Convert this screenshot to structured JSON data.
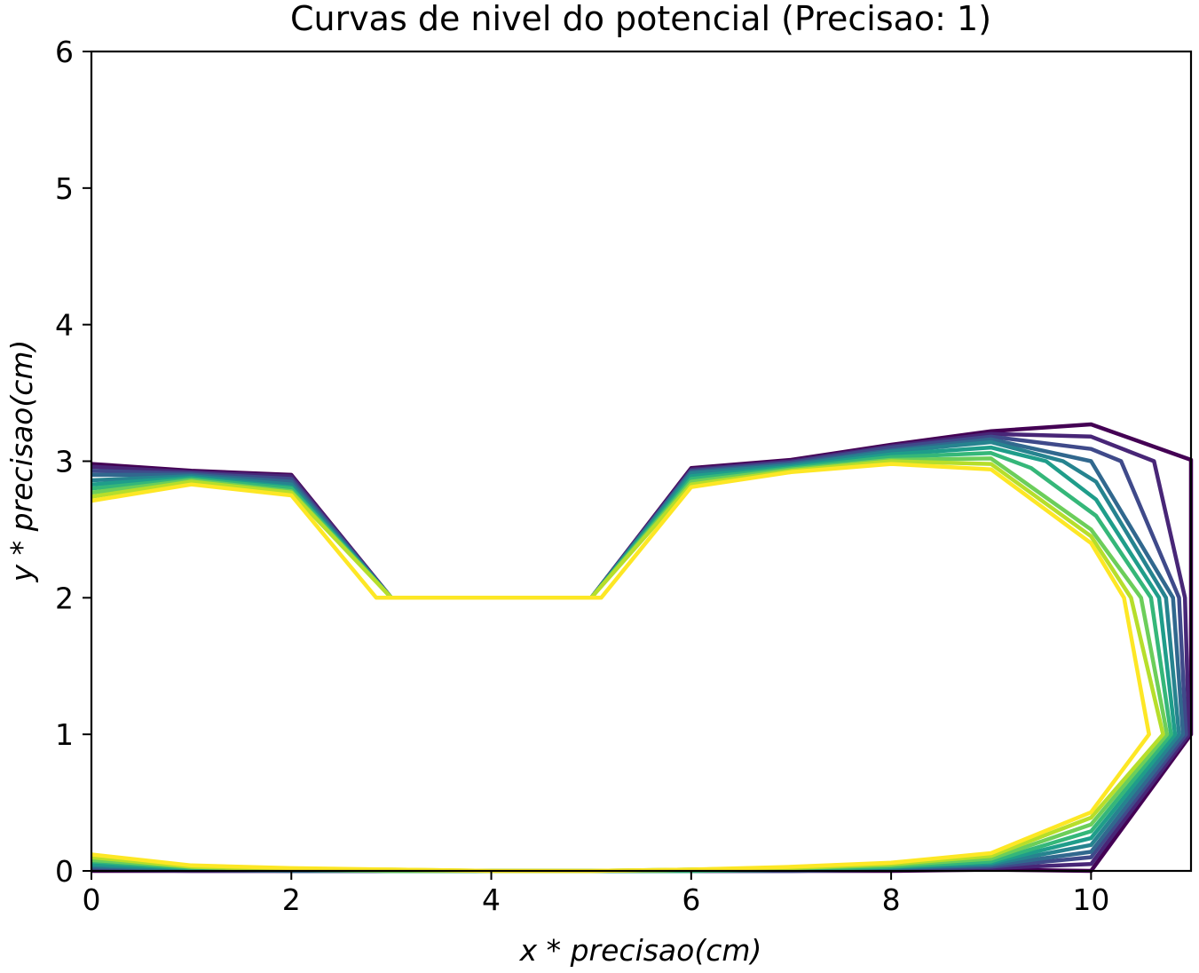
{
  "chart_data": {
    "type": "line",
    "title": "Curvas de nivel do potencial (Precisao: 1)",
    "xlabel": "x * precisao(cm)",
    "ylabel": "y * precisao(cm)",
    "xlim": [
      0,
      11
    ],
    "ylim": [
      0,
      6
    ],
    "x_ticks": [
      0,
      2,
      4,
      6,
      8,
      10
    ],
    "y_ticks": [
      0,
      1,
      2,
      3,
      4,
      5,
      6
    ],
    "grid": false,
    "colormap": [
      "#440154",
      "#482677",
      "#3f4a8a",
      "#31688e",
      "#26838f",
      "#1f9d8a",
      "#35b779",
      "#6cce5a",
      "#b6de2b",
      "#fde725"
    ],
    "series": [
      {
        "color": "#440154",
        "x": [
          0,
          1,
          2,
          3,
          4,
          5,
          6,
          7,
          8,
          9,
          10,
          11,
          11,
          11,
          10,
          9,
          8,
          7,
          6,
          5,
          4,
          3,
          2,
          1,
          0
        ],
        "y": [
          2.98,
          2.93,
          2.9,
          2.0,
          2.0,
          2.0,
          2.95,
          3.01,
          3.12,
          3.22,
          3.27,
          3.01,
          2.0,
          1.0,
          0.0,
          0.01,
          0.0,
          0.0,
          0.0,
          0.0,
          0.0,
          0.0,
          0.0,
          0.0,
          0.0
        ]
      },
      {
        "color": "#482677",
        "x": [
          0,
          1,
          2,
          3,
          4,
          5,
          6,
          7,
          8,
          9,
          10,
          10.63,
          10.94,
          10.98,
          10.0,
          9,
          8,
          7,
          6,
          5,
          4,
          3,
          2,
          1,
          0
        ],
        "y": [
          2.96,
          2.92,
          2.89,
          2.0,
          2.0,
          2.0,
          2.94,
          3.0,
          3.11,
          3.2,
          3.18,
          3.0,
          2.0,
          1.0,
          0.05,
          0.02,
          0.01,
          0.0,
          0.0,
          0.0,
          0.0,
          0.0,
          0.0,
          0.0,
          0.01
        ]
      },
      {
        "color": "#3f4a8a",
        "x": [
          0,
          1,
          2,
          3,
          4,
          5,
          6,
          7,
          8,
          9,
          10,
          10.3,
          10.88,
          10.95,
          10.0,
          9,
          8,
          7,
          6,
          5,
          4,
          3,
          2,
          1,
          0
        ],
        "y": [
          2.93,
          2.91,
          2.87,
          2.0,
          2.0,
          2.0,
          2.93,
          2.99,
          3.1,
          3.18,
          3.09,
          3.0,
          2.0,
          1.0,
          0.1,
          0.03,
          0.01,
          0.0,
          0.0,
          0.0,
          0.0,
          0.0,
          0.0,
          0.01,
          0.02
        ]
      },
      {
        "color": "#31688e",
        "x": [
          0,
          1,
          2,
          3,
          4,
          5,
          6,
          7,
          8,
          9,
          10,
          10.82,
          10.92,
          10.0,
          9,
          8,
          7,
          6,
          5,
          4,
          3,
          2,
          1,
          0
        ],
        "y": [
          2.9,
          2.9,
          2.85,
          2.0,
          2.0,
          2.0,
          2.92,
          2.98,
          3.08,
          3.16,
          3.0,
          2.0,
          1.0,
          0.14,
          0.04,
          0.02,
          0.01,
          0.0,
          0.0,
          0.0,
          0.0,
          0.0,
          0.01,
          0.03
        ]
      },
      {
        "color": "#26838f",
        "x": [
          0,
          1,
          2,
          3,
          4,
          5,
          6,
          7,
          8,
          9,
          9.72,
          10.05,
          10.75,
          10.88,
          10.0,
          9,
          8,
          7,
          6,
          5,
          4,
          3,
          2,
          1,
          0
        ],
        "y": [
          2.86,
          2.89,
          2.83,
          2.0,
          2.0,
          2.0,
          2.91,
          2.97,
          3.07,
          3.14,
          3.0,
          2.85,
          2.0,
          1.0,
          0.19,
          0.05,
          0.02,
          0.01,
          0.0,
          0.0,
          0.0,
          0.0,
          0.01,
          0.01,
          0.04
        ]
      },
      {
        "color": "#1f9d8a",
        "x": [
          0,
          1,
          2,
          3,
          4,
          5,
          6,
          7,
          8,
          9,
          9.55,
          10.05,
          10.68,
          10.84,
          10.0,
          9,
          8,
          7,
          6,
          5,
          4,
          3,
          2,
          1,
          0
        ],
        "y": [
          2.83,
          2.88,
          2.81,
          2.0,
          2.0,
          2.0,
          2.89,
          2.96,
          3.05,
          3.1,
          3.0,
          2.72,
          2.0,
          1.0,
          0.24,
          0.06,
          0.03,
          0.01,
          0.0,
          0.0,
          0.0,
          0.0,
          0.01,
          0.02,
          0.05
        ]
      },
      {
        "color": "#35b779",
        "x": [
          0,
          1,
          2,
          3,
          4,
          5,
          6,
          7,
          8,
          9,
          9.4,
          10.05,
          10.6,
          10.8,
          10.0,
          9,
          8,
          7,
          6,
          5,
          4,
          3,
          2,
          1,
          0
        ],
        "y": [
          2.8,
          2.87,
          2.8,
          2.0,
          2.0,
          2.0,
          2.87,
          2.95,
          3.03,
          3.06,
          2.95,
          2.6,
          2.0,
          1.0,
          0.29,
          0.07,
          0.03,
          0.01,
          0.0,
          0.0,
          0.0,
          0.0,
          0.01,
          0.02,
          0.07
        ]
      },
      {
        "color": "#6cce5a",
        "x": [
          0,
          1,
          2,
          3,
          4,
          5,
          6,
          7,
          8,
          9,
          10.0,
          10.5,
          10.76,
          10.0,
          9,
          8,
          7,
          6,
          5,
          4,
          3,
          2,
          1,
          0
        ],
        "y": [
          2.77,
          2.86,
          2.78,
          2.0,
          2.0,
          2.0,
          2.85,
          2.94,
          3.01,
          3.02,
          2.5,
          2.0,
          1.0,
          0.34,
          0.09,
          0.04,
          0.02,
          0.01,
          0.0,
          0.0,
          0.0,
          0.01,
          0.03,
          0.08
        ]
      },
      {
        "color": "#b6de2b",
        "x": [
          0,
          1,
          2,
          3,
          4,
          5,
          6,
          7,
          8,
          9,
          10.0,
          10.4,
          10.72,
          10.0,
          9,
          8,
          7,
          6,
          5,
          4,
          3,
          2,
          1,
          0
        ],
        "y": [
          2.74,
          2.85,
          2.77,
          2.0,
          2.0,
          2.0,
          2.83,
          2.93,
          3.0,
          2.98,
          2.45,
          2.0,
          1.0,
          0.39,
          0.11,
          0.05,
          0.02,
          0.01,
          0.0,
          0.0,
          0.01,
          0.01,
          0.03,
          0.1
        ]
      },
      {
        "color": "#fde725",
        "x": [
          0,
          1,
          2,
          2.85,
          4,
          5.1,
          6,
          7,
          8,
          9,
          10.0,
          10.33,
          10.58,
          10.0,
          9,
          8,
          7,
          6,
          5,
          4,
          3,
          2,
          1,
          0
        ],
        "y": [
          2.71,
          2.83,
          2.75,
          2.0,
          2.0,
          2.0,
          2.81,
          2.92,
          2.98,
          2.94,
          2.4,
          2.0,
          1.0,
          0.43,
          0.13,
          0.06,
          0.03,
          0.01,
          0.0,
          0.0,
          0.01,
          0.02,
          0.04,
          0.12
        ]
      }
    ]
  }
}
